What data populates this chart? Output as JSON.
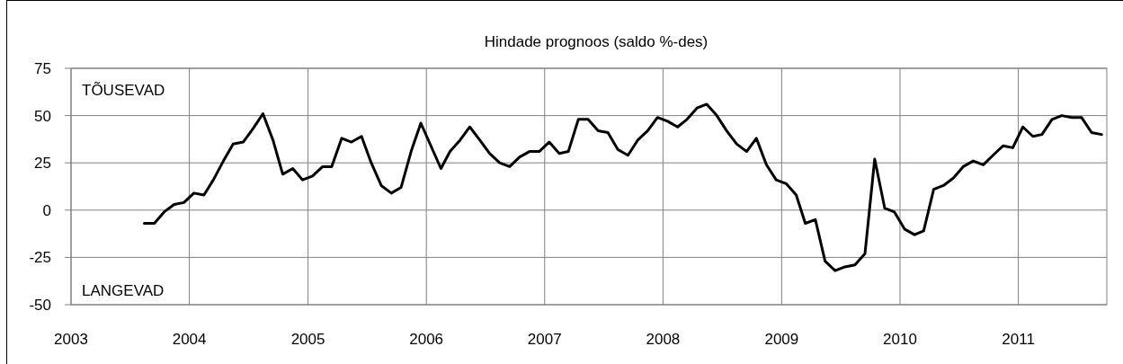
{
  "chart_data": {
    "type": "line",
    "title": "Hindade prognoos (saldo %-des)",
    "annotations": [
      "TÕUSEVAD",
      "LANGEVAD"
    ],
    "x": [
      "2003-08-15",
      "2003-09-15",
      "2003-10-15",
      "2003-11-15",
      "2003-12-15",
      "2004-01-15",
      "2004-02-15",
      "2004-03-15",
      "2004-04-15",
      "2004-05-15",
      "2004-06-15",
      "2004-07-15",
      "2004-08-15",
      "2004-09-15",
      "2004-10-15",
      "2004-11-15",
      "2004-12-15",
      "2005-01-15",
      "2005-02-15",
      "2005-03-15",
      "2005-04-15",
      "2005-05-15",
      "2005-06-15",
      "2005-07-15",
      "2005-08-15",
      "2005-09-15",
      "2005-10-15",
      "2005-11-15",
      "2005-12-15",
      "2006-01-15",
      "2006-02-15",
      "2006-03-15",
      "2006-04-15",
      "2006-05-15",
      "2006-06-15",
      "2006-07-15",
      "2006-08-15",
      "2006-09-15",
      "2006-10-15",
      "2006-11-15",
      "2006-12-15",
      "2007-01-15",
      "2007-02-15",
      "2007-03-15",
      "2007-04-15",
      "2007-05-15",
      "2007-06-15",
      "2007-07-15",
      "2007-08-15",
      "2007-09-15",
      "2007-10-15",
      "2007-11-15",
      "2007-12-15",
      "2008-01-15",
      "2008-02-15",
      "2008-03-15",
      "2008-04-15",
      "2008-05-15",
      "2008-06-15",
      "2008-07-15",
      "2008-08-15",
      "2008-09-15",
      "2008-10-15",
      "2008-11-15",
      "2008-12-15",
      "2009-01-15",
      "2009-02-15",
      "2009-03-15",
      "2009-04-15",
      "2009-05-15",
      "2009-06-15",
      "2009-07-15",
      "2009-08-15",
      "2009-09-15",
      "2009-10-15",
      "2009-11-15",
      "2009-12-15",
      "2010-01-15",
      "2010-02-15",
      "2010-03-15",
      "2010-04-15",
      "2010-05-15",
      "2010-06-15",
      "2010-07-15",
      "2010-08-15",
      "2010-09-15",
      "2010-10-15",
      "2010-11-15",
      "2010-12-15",
      "2011-01-15",
      "2011-02-15",
      "2011-03-15",
      "2011-04-15",
      "2011-05-15",
      "2011-06-15",
      "2011-07-15",
      "2011-08-15",
      "2011-09-15"
    ],
    "series": [
      {
        "color": "#000000",
        "values": [
          -7,
          -7,
          -1,
          3,
          4,
          9,
          8,
          16,
          26,
          35,
          36,
          43,
          51,
          37,
          19,
          22,
          16,
          18,
          23,
          23,
          38,
          36,
          39,
          25,
          13,
          9,
          12,
          31,
          46,
          34,
          22,
          31,
          37,
          44,
          37,
          30,
          25,
          23,
          28,
          31,
          31,
          36,
          30,
          31,
          48,
          48,
          42,
          41,
          32,
          29,
          37,
          42,
          49,
          47,
          44,
          48,
          54,
          56,
          50,
          42,
          35,
          31,
          38,
          24,
          16,
          14,
          8,
          -7,
          -5,
          -27,
          -32,
          -30,
          -29,
          -23,
          27,
          1,
          -1,
          -10,
          -13,
          -11,
          11,
          13,
          17,
          23,
          26,
          24,
          29,
          34,
          33,
          44,
          39,
          40,
          48,
          50,
          49,
          49,
          41,
          40
        ]
      }
    ],
    "xlim": [
      "2003",
      "2011-10"
    ],
    "xticks": [
      "2003",
      "2004",
      "2005",
      "2006",
      "2007",
      "2008",
      "2009",
      "2010",
      "2011"
    ],
    "ylim": [
      -50,
      75
    ],
    "yticks": [
      -50,
      -25,
      0,
      25,
      50,
      75
    ],
    "grid": true,
    "line_style": "solid",
    "marker": "none"
  }
}
